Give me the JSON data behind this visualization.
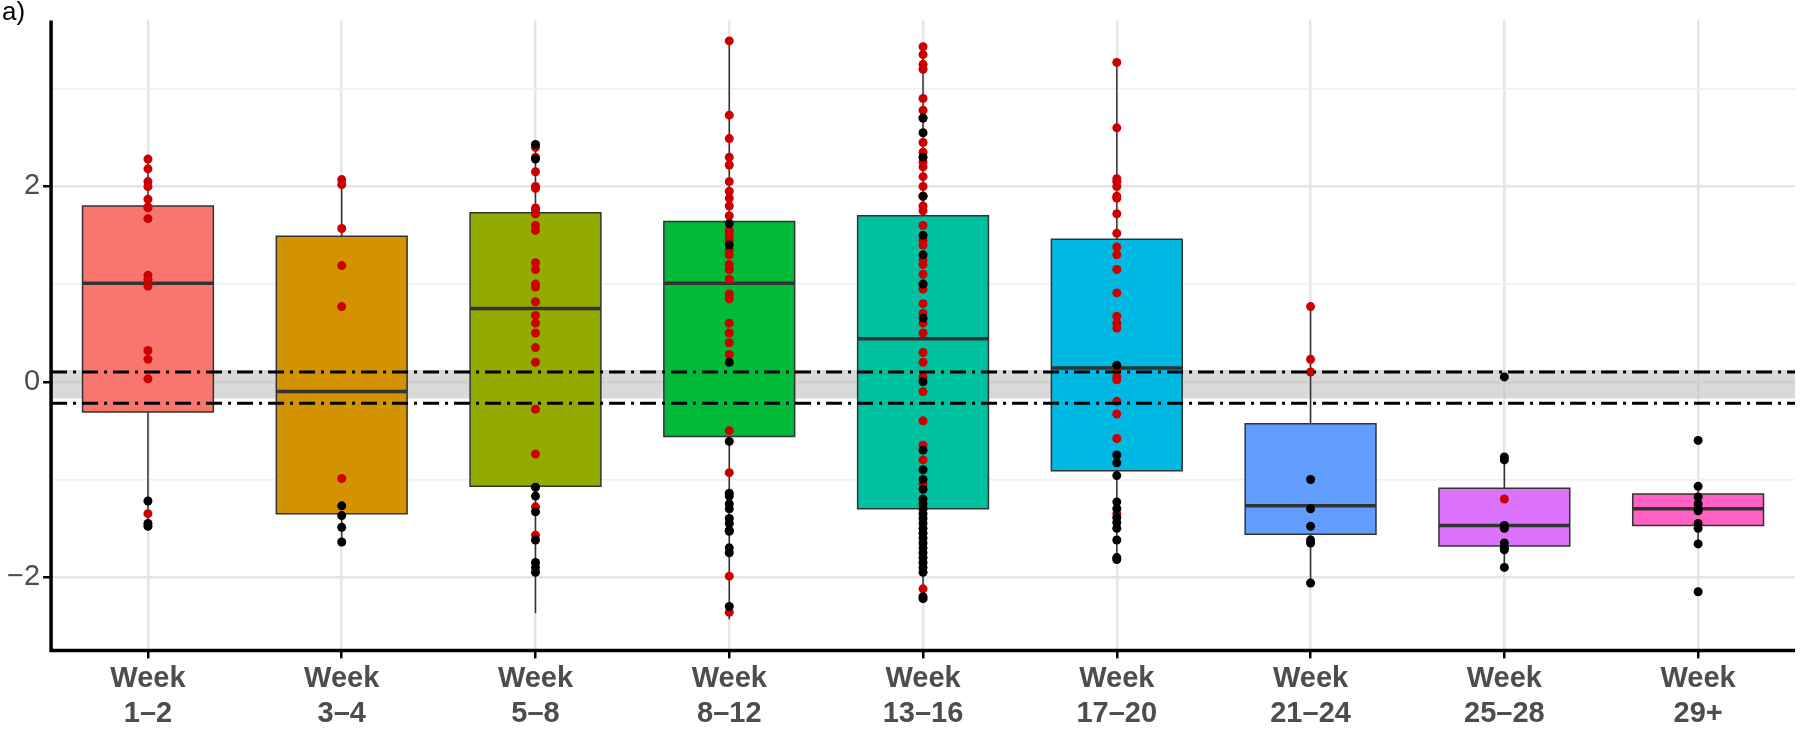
{
  "chart_data": {
    "type": "box",
    "categories": [
      "Week 1–2",
      "Week 3–4",
      "Week 5–8",
      "Week 8–12",
      "Week 13–16",
      "Week 17–20",
      "Week 21–24",
      "Week 25–28",
      "Week 29+"
    ],
    "colors": [
      "#f8766d",
      "#d39200",
      "#93aa00",
      "#00ba38",
      "#00c19f",
      "#00b9e3",
      "#619cff",
      "#db72fb",
      "#ff61c3"
    ],
    "boxes": [
      {
        "low": -1.48,
        "q1": -0.31,
        "median": 1.01,
        "q3": 1.8,
        "high": 2.28
      },
      {
        "low": -1.63,
        "q1": -1.35,
        "median": -0.1,
        "q3": 1.49,
        "high": 2.06
      },
      {
        "low": -2.37,
        "q1": -1.07,
        "median": 0.75,
        "q3": 1.73,
        "high": 2.41
      },
      {
        "low": -2.43,
        "q1": -0.56,
        "median": 1.01,
        "q3": 1.64,
        "high": 3.49
      },
      {
        "low": -2.21,
        "q1": -1.3,
        "median": 0.44,
        "q3": 1.7,
        "high": 3.43
      },
      {
        "low": -1.81,
        "q1": -0.91,
        "median": 0.14,
        "q3": 1.46,
        "high": 3.27
      },
      {
        "low": -2.06,
        "q1": -1.56,
        "median": -1.27,
        "q3": -0.43,
        "high": 0.78
      },
      {
        "low": -1.88,
        "q1": -1.68,
        "median": -1.47,
        "q3": -1.09,
        "high": -0.77
      },
      {
        "low": -1.64,
        "q1": -1.47,
        "median": -1.3,
        "q3": -1.15,
        "high": -1.04
      }
    ],
    "series": [
      {
        "type": "scatter",
        "color": "#000000",
        "x": [
          "Week 1–2",
          "Week 1–2",
          "Week 1–2",
          "Week 3–4",
          "Week 3–4",
          "Week 3–4",
          "Week 3–4",
          "Week 5–8",
          "Week 5–8",
          "Week 5–8",
          "Week 5–8",
          "Week 5–8",
          "Week 5–8",
          "Week 5–8",
          "Week 5–8",
          "Week 5–8",
          "Week 8–12",
          "Week 8–12",
          "Week 8–12",
          "Week 8–12",
          "Week 8–12",
          "Week 8–12",
          "Week 8–12",
          "Week 8–12",
          "Week 8–12",
          "Week 8–12",
          "Week 8–12",
          "Week 8–12",
          "Week 8–12",
          "Week 8–12",
          "Week 8–12",
          "Week 13–16",
          "Week 13–16",
          "Week 13–16",
          "Week 13–16",
          "Week 13–16",
          "Week 13–16",
          "Week 13–16",
          "Week 13–16",
          "Week 13–16",
          "Week 13–16",
          "Week 13–16",
          "Week 13–16",
          "Week 13–16",
          "Week 13–16",
          "Week 13–16",
          "Week 13–16",
          "Week 13–16",
          "Week 13–16",
          "Week 13–16",
          "Week 13–16",
          "Week 13–16",
          "Week 13–16",
          "Week 13–16",
          "Week 13–16",
          "Week 13–16",
          "Week 13–16",
          "Week 13–16",
          "Week 13–16",
          "Week 13–16",
          "Week 13–16",
          "Week 13–16",
          "Week 17–20",
          "Week 17–20",
          "Week 17–20",
          "Week 17–20",
          "Week 17–20",
          "Week 17–20",
          "Week 17–20",
          "Week 17–20",
          "Week 17–20",
          "Week 17–20",
          "Week 17–20",
          "Week 17–20",
          "Week 21–24",
          "Week 21–24",
          "Week 21–24",
          "Week 21–24",
          "Week 21–24",
          "Week 21–24",
          "Week 25–28",
          "Week 25–28",
          "Week 25–28",
          "Week 25–28",
          "Week 25–28",
          "Week 25–28",
          "Week 25–28",
          "Week 25–28",
          "Week 25–28",
          "Week 29+",
          "Week 29+",
          "Week 29+",
          "Week 29+",
          "Week 29+",
          "Week 29+",
          "Week 29+",
          "Week 29+",
          "Week 29+",
          "Week 29+"
        ],
        "values": [
          -1.22,
          -1.48,
          -1.45,
          -1.37,
          -1.64,
          -1.27,
          -1.49,
          2.43,
          2.28,
          -1.08,
          -1.17,
          -1.33,
          -1.62,
          -1.85,
          -1.9,
          -1.95,
          1.62,
          1.4,
          0.2,
          -1.17,
          -1.25,
          -1.3,
          -1.4,
          -1.45,
          -1.53,
          -1.75,
          -1.52,
          -1.7,
          -2.3,
          -1.14,
          -0.61,
          2.55,
          2.7,
          2.3,
          1.9,
          1.5,
          1.3,
          1.0,
          0.65,
          0.0,
          -0.7,
          -0.9,
          -1.0,
          -1.1,
          -1.2,
          -1.25,
          -1.3,
          -1.35,
          -1.4,
          -1.45,
          -1.5,
          -1.55,
          -1.6,
          -1.65,
          -1.7,
          -1.75,
          -1.8,
          -1.85,
          -1.9,
          -1.95,
          -2.2,
          -2.22,
          0.17,
          -0.75,
          -0.83,
          -0.96,
          -1.23,
          -1.3,
          -1.39,
          -1.44,
          -1.5,
          -1.62,
          -1.8,
          -1.82,
          -1.0,
          -1.3,
          -1.48,
          -1.62,
          -1.65,
          -2.06,
          0.05,
          -0.8,
          -0.77,
          -1.47,
          -1.5,
          -1.65,
          -1.7,
          -1.72,
          -1.9,
          -0.6,
          -1.07,
          -1.18,
          -1.25,
          -1.3,
          -1.32,
          -1.45,
          -1.5,
          -1.66,
          -2.15
        ]
      },
      {
        "type": "scatter",
        "color": "#cc0000",
        "x": [
          "Week 1–2",
          "Week 1–2",
          "Week 1–2",
          "Week 1–2",
          "Week 1–2",
          "Week 1–2",
          "Week 1–2",
          "Week 1–2",
          "Week 1–2",
          "Week 1–2",
          "Week 1–2",
          "Week 1–2",
          "Week 1–2",
          "Week 1–2",
          "Week 1–2",
          "Week 3–4",
          "Week 3–4",
          "Week 3–4",
          "Week 3–4",
          "Week 3–4",
          "Week 3–4",
          "Week 5–8",
          "Week 5–8",
          "Week 5–8",
          "Week 5–8",
          "Week 5–8",
          "Week 5–8",
          "Week 5–8",
          "Week 5–8",
          "Week 5–8",
          "Week 5–8",
          "Week 5–8",
          "Week 5–8",
          "Week 5–8",
          "Week 5–8",
          "Week 5–8",
          "Week 5–8",
          "Week 5–8",
          "Week 5–8",
          "Week 5–8",
          "Week 5–8",
          "Week 5–8",
          "Week 5–8",
          "Week 5–8",
          "Week 5–8",
          "Week 8–12",
          "Week 8–12",
          "Week 8–12",
          "Week 8–12",
          "Week 8–12",
          "Week 8–12",
          "Week 8–12",
          "Week 8–12",
          "Week 8–12",
          "Week 8–12",
          "Week 8–12",
          "Week 8–12",
          "Week 8–12",
          "Week 8–12",
          "Week 8–12",
          "Week 8–12",
          "Week 8–12",
          "Week 8–12",
          "Week 8–12",
          "Week 8–12",
          "Week 8–12",
          "Week 8–12",
          "Week 8–12",
          "Week 8–12",
          "Week 8–12",
          "Week 8–12",
          "Week 8–12",
          "Week 8–12",
          "Week 13–16",
          "Week 13–16",
          "Week 13–16",
          "Week 13–16",
          "Week 13–16",
          "Week 13–16",
          "Week 13–16",
          "Week 13–16",
          "Week 13–16",
          "Week 13–16",
          "Week 13–16",
          "Week 13–16",
          "Week 13–16",
          "Week 13–16",
          "Week 13–16",
          "Week 13–16",
          "Week 13–16",
          "Week 13–16",
          "Week 13–16",
          "Week 13–16",
          "Week 13–16",
          "Week 13–16",
          "Week 13–16",
          "Week 13–16",
          "Week 13–16",
          "Week 13–16",
          "Week 13–16",
          "Week 13–16",
          "Week 13–16",
          "Week 13–16",
          "Week 13–16",
          "Week 13–16",
          "Week 13–16",
          "Week 13–16",
          "Week 13–16",
          "Week 13–16",
          "Week 13–16",
          "Week 17–20",
          "Week 17–20",
          "Week 17–20",
          "Week 17–20",
          "Week 17–20",
          "Week 17–20",
          "Week 17–20",
          "Week 17–20",
          "Week 17–20",
          "Week 17–20",
          "Week 17–20",
          "Week 17–20",
          "Week 17–20",
          "Week 17–20",
          "Week 17–20",
          "Week 17–20",
          "Week 17–20",
          "Week 17–20",
          "Week 17–20",
          "Week 17–20",
          "Week 17–20",
          "Week 17–20",
          "Week 17–20",
          "Week 17–20",
          "Week 21–24",
          "Week 21–24",
          "Week 21–24",
          "Week 25–28"
        ],
        "values": [
          2.28,
          2.18,
          2.05,
          2.0,
          1.87,
          1.79,
          1.78,
          1.67,
          1.09,
          1.05,
          0.98,
          0.32,
          0.23,
          0.03,
          -1.35,
          2.02,
          2.07,
          1.57,
          1.19,
          0.77,
          -0.99,
          2.4,
          2.3,
          2.15,
          2.0,
          1.98,
          1.78,
          1.75,
          1.72,
          1.6,
          1.55,
          1.22,
          1.15,
          1.0,
          0.97,
          0.82,
          0.68,
          0.6,
          0.5,
          0.35,
          0.2,
          -0.28,
          -0.74,
          -1.28,
          -1.57,
          3.49,
          2.73,
          2.49,
          2.3,
          2.22,
          2.05,
          1.95,
          1.88,
          1.8,
          1.7,
          1.55,
          1.5,
          1.45,
          1.35,
          1.3,
          1.2,
          1.15,
          1.05,
          0.9,
          0.85,
          0.6,
          0.5,
          0.4,
          0.28,
          -0.5,
          -0.93,
          -1.99,
          -2.36,
          3.43,
          3.35,
          3.25,
          3.2,
          2.9,
          2.78,
          2.7,
          2.45,
          2.35,
          2.25,
          2.2,
          2.1,
          2.0,
          1.9,
          1.8,
          1.75,
          1.6,
          1.45,
          1.4,
          1.25,
          1.2,
          1.1,
          1.0,
          0.95,
          0.8,
          0.7,
          0.6,
          0.5,
          0.3,
          0.2,
          0.05,
          -0.1,
          -0.4,
          -0.65,
          -0.8,
          -1.05,
          -2.12,
          3.27,
          2.6,
          2.08,
          2.05,
          2.0,
          1.9,
          1.88,
          1.72,
          1.52,
          1.38,
          1.3,
          1.15,
          0.91,
          0.67,
          0.6,
          0.55,
          0.15,
          0.12,
          0.05,
          0.02,
          -0.2,
          -0.33,
          -0.58,
          -1.35,
          0.77,
          0.23,
          0.1,
          -1.2
        ]
      }
    ],
    "ylim": [
      -2.75,
      3.7
    ],
    "yticks": [
      -2,
      {
        "value": -1,
        "label": null
      },
      0,
      {
        "value": 1,
        "label": null
      },
      2,
      {
        "value": 3,
        "label": null
      }
    ],
    "grid": true,
    "legend": false,
    "marker": "circle",
    "ref_lines": [
      {
        "axis": "y",
        "value": 0.1,
        "line_style": "dashdot",
        "color": "#000000"
      },
      {
        "axis": "y",
        "value": -0.22,
        "line_style": "dashdot",
        "color": "#000000"
      }
    ],
    "bands": [
      {
        "axis": "y",
        "from": -0.17,
        "to": 0.12,
        "color": "#bfbfbf"
      }
    ],
    "annotations": [
      "a)"
    ]
  }
}
